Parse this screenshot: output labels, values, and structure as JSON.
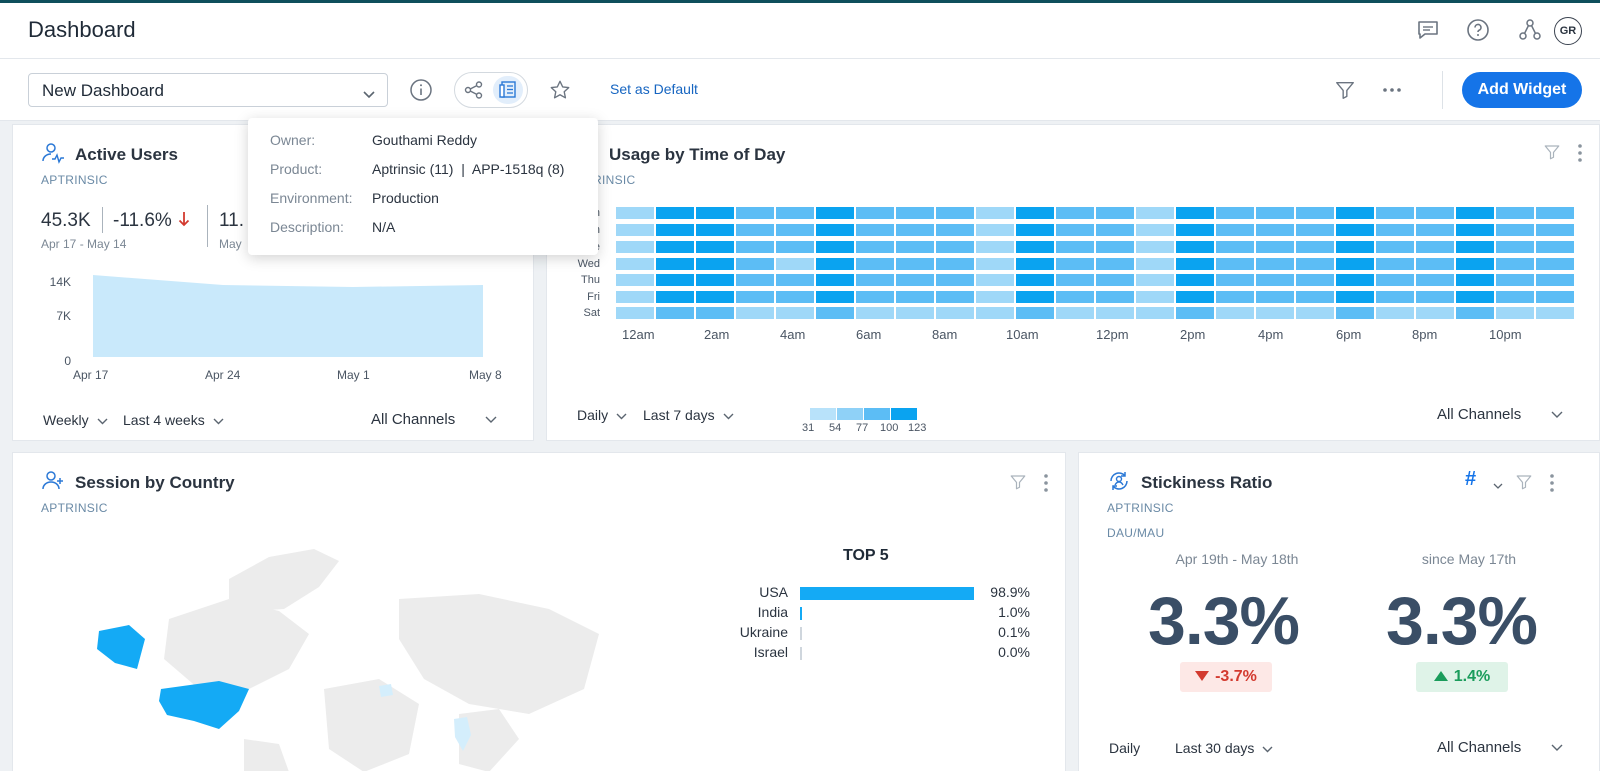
{
  "header": {
    "title": "Dashboard",
    "avatar_initials": "GR"
  },
  "toolbar": {
    "dashboard_select": "New Dashboard",
    "set_default": "Set as Default",
    "add_widget": "Add Widget"
  },
  "popover": {
    "owner_label": "Owner:",
    "owner": "Gouthami Reddy",
    "product_label": "Product:",
    "product": "Aptrinsic (11)  |  APP-1518q (8)",
    "environment_label": "Environment:",
    "environment": "Production",
    "description_label": "Description:",
    "description": "N/A"
  },
  "active_users": {
    "title": "Active Users",
    "subtitle": "APTRINSIC",
    "metric1": "45.3K",
    "metric1_change": "-11.6%",
    "metric1_range": "Apr 17 - May 14",
    "metric2": "11.",
    "metric2_range": "May",
    "y_ticks": [
      "14K",
      "7K",
      "0"
    ],
    "x_ticks": [
      "Apr 17",
      "Apr 24",
      "May 1",
      "May 8"
    ],
    "period": "Weekly",
    "range": "Last 4 weeks",
    "channels": "All Channels"
  },
  "usage_time": {
    "title": "Usage by Time of Day",
    "subtitle": "RINSIC",
    "days": [
      "n",
      "n",
      "e",
      "Wed",
      "Thu",
      "Fri",
      "Sat"
    ],
    "hours": [
      "12am",
      "2am",
      "4am",
      "6am",
      "8am",
      "10am",
      "12pm",
      "2pm",
      "4pm",
      "6pm",
      "8pm",
      "10pm"
    ],
    "legend_values": [
      "31",
      "54",
      "77",
      "100",
      "123"
    ],
    "period": "Daily",
    "range": "Last 7 days",
    "channels": "All Channels"
  },
  "session_country": {
    "title": "Session by Country",
    "subtitle": "APTRINSIC",
    "top_title": "TOP 5",
    "top": [
      {
        "country": "USA",
        "value": 98.9,
        "label": "98.9%"
      },
      {
        "country": "India",
        "value": 1.0,
        "label": "1.0%"
      },
      {
        "country": "Ukraine",
        "value": 0.1,
        "label": "0.1%"
      },
      {
        "country": "Israel",
        "value": 0.0,
        "label": "0.0%"
      }
    ]
  },
  "stickiness": {
    "title": "Stickiness Ratio",
    "subtitle": "APTRINSIC",
    "metric": "DAU/MAU",
    "hash": "#",
    "col1_range": "Apr 19th - May 18th",
    "col1_value": "3.3%",
    "col1_change": "-3.7%",
    "col2_range": "since May 17th",
    "col2_value": "3.3%",
    "col2_change": "1.4%",
    "period": "Daily",
    "range": "Last 30 days",
    "channels": "All Channels"
  },
  "colors": {
    "accent": "#1574e8",
    "heat_low": "#9fd8f8",
    "heat_high": "#0aa3f0",
    "negative": "#d33a2f",
    "positive": "#1a9c5b"
  }
}
